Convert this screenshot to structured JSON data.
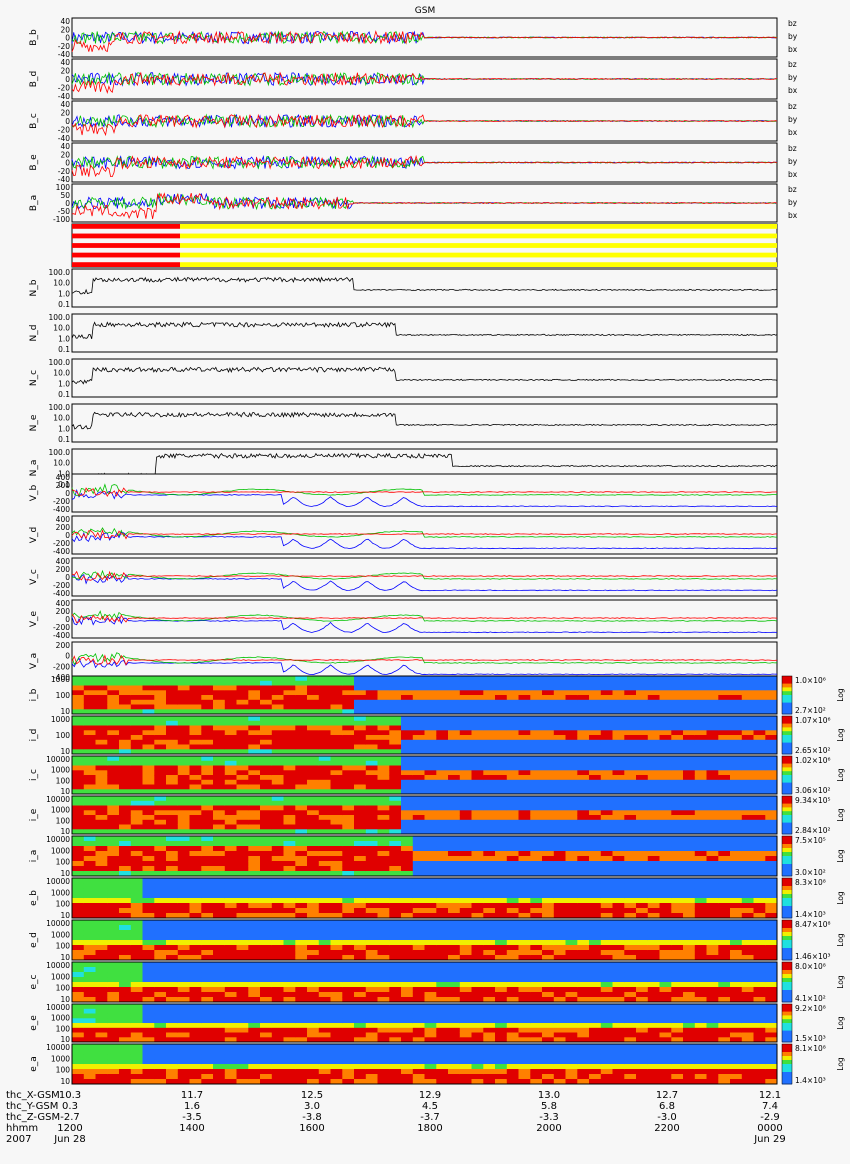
{
  "title": "GSM",
  "colors": {
    "bz": "#ff0000",
    "by": "#00c000",
    "bx": "#0000ff",
    "spin_red": "#ff0000",
    "spin_yellow": "#ffff00"
  },
  "chart_data": [
    {
      "type": "line",
      "group": "magnetic field",
      "panels": [
        {
          "ylabel": "B_b",
          "legend": [
            "bz",
            "by",
            "bx"
          ],
          "ticks": [
            "40",
            "20",
            "0",
            "-20",
            "-40"
          ]
        },
        {
          "ylabel": "B_d",
          "legend": [
            "bz",
            "by",
            "bx"
          ],
          "ticks": [
            "40",
            "20",
            "0",
            "-20",
            "-40"
          ]
        },
        {
          "ylabel": "B_c",
          "legend": [
            "bz",
            "by",
            "bx"
          ],
          "ticks": [
            "40",
            "20",
            "0",
            "-20",
            "-40"
          ]
        },
        {
          "ylabel": "B_e",
          "legend": [
            "bz",
            "by",
            "bx"
          ],
          "ticks": [
            "40",
            "20",
            "0",
            "-20",
            "-40"
          ]
        },
        {
          "ylabel": "B_a",
          "legend": [
            "bz",
            "by",
            "bx"
          ],
          "ticks": [
            "100",
            "50",
            "0",
            "-50",
            "-100"
          ]
        }
      ]
    },
    {
      "type": "line",
      "group": "density",
      "yscale": "log",
      "panels": [
        {
          "ylabel": "N_b",
          "ticks": [
            "100.0",
            "10.0",
            "1.0",
            "0.1"
          ]
        },
        {
          "ylabel": "N_d",
          "ticks": [
            "100.0",
            "10.0",
            "1.0",
            "0.1"
          ]
        },
        {
          "ylabel": "N_c",
          "ticks": [
            "100.0",
            "10.0",
            "1.0",
            "0.1"
          ]
        },
        {
          "ylabel": "N_e",
          "ticks": [
            "100.0",
            "10.0",
            "1.0",
            "0.1"
          ]
        },
        {
          "ylabel": "N_a",
          "ticks": [
            "100.0",
            "10.0",
            "1.0",
            "0.1"
          ]
        }
      ]
    },
    {
      "type": "line",
      "group": "velocity",
      "panels": [
        {
          "ylabel": "V_b",
          "ticks": [
            "400",
            "200",
            "0",
            "-200",
            "-400"
          ]
        },
        {
          "ylabel": "V_d",
          "ticks": [
            "400",
            "200",
            "0",
            "-200",
            "-400"
          ]
        },
        {
          "ylabel": "V_c",
          "ticks": [
            "400",
            "200",
            "0",
            "-200",
            "-400"
          ]
        },
        {
          "ylabel": "V_e",
          "ticks": [
            "400",
            "200",
            "0",
            "-200",
            "-400"
          ]
        },
        {
          "ylabel": "V_a",
          "ticks": [
            "200",
            "0",
            "-200",
            "-400"
          ]
        }
      ]
    },
    {
      "type": "heatmap",
      "group": "ion spectrogram",
      "colorbar_label": "Log",
      "panels": [
        {
          "ylabel": "i_b",
          "ticks": [
            "1000",
            "100",
            "10"
          ],
          "cmax": "1.0×10⁶",
          "cmin": "2.7×10²"
        },
        {
          "ylabel": "i_d",
          "ticks": [
            "1000",
            "100",
            "10"
          ],
          "cmax": "1.07×10⁶",
          "cmin": "2.65×10²"
        },
        {
          "ylabel": "i_c",
          "ticks": [
            "10000",
            "1000",
            "100",
            "10"
          ],
          "cmax": "1.02×10⁶",
          "cmin": "3.06×10²"
        },
        {
          "ylabel": "i_e",
          "ticks": [
            "10000",
            "1000",
            "100",
            "10"
          ],
          "cmax": "9.34×10⁵",
          "cmin": "2.84×10²"
        },
        {
          "ylabel": "i_a",
          "ticks": [
            "10000",
            "1000",
            "100",
            "10"
          ],
          "cmax": "7.5×10⁵",
          "cmin": "3.0×10²"
        }
      ]
    },
    {
      "type": "heatmap",
      "group": "electron spectrogram",
      "colorbar_label": "Log",
      "panels": [
        {
          "ylabel": "e_b",
          "ticks": [
            "10000",
            "1000",
            "100",
            "10"
          ],
          "cmax": "8.3×10⁸",
          "cmin": "1.4×10³"
        },
        {
          "ylabel": "e_d",
          "ticks": [
            "10000",
            "1000",
            "100",
            "10"
          ],
          "cmax": "8.47×10⁸",
          "cmin": "1.46×10³"
        },
        {
          "ylabel": "e_c",
          "ticks": [
            "10000",
            "1000",
            "100",
            "10"
          ],
          "cmax": "8.0×10⁸",
          "cmin": "4.1×10²"
        },
        {
          "ylabel": "e_e",
          "ticks": [
            "10000",
            "1000",
            "100",
            "10"
          ],
          "cmax": "9.2×10⁸",
          "cmin": "1.5×10³"
        },
        {
          "ylabel": "e_a",
          "ticks": [
            "10000",
            "1000",
            "100",
            "10"
          ],
          "cmax": "8.1×10⁸",
          "cmin": "1.4×10³"
        }
      ]
    }
  ],
  "footer": {
    "rows": [
      {
        "label": "thc_X-GSM",
        "values": [
          "10.3",
          "11.7",
          "12.5",
          "12.9",
          "13.0",
          "12.7",
          "12.1"
        ]
      },
      {
        "label": "thc_Y-GSM",
        "values": [
          "0.3",
          "1.6",
          "3.0",
          "4.5",
          "5.8",
          "6.8",
          "7.4"
        ]
      },
      {
        "label": "thc_Z-GSM",
        "values": [
          "-2.7",
          "-3.5",
          "-3.8",
          "-3.7",
          "-3.3",
          "-3.0",
          "-2.9"
        ]
      },
      {
        "label": "hhmm",
        "values": [
          "1200",
          "1400",
          "1600",
          "1800",
          "2000",
          "2200",
          "0000"
        ]
      },
      {
        "label": "2007",
        "values": [
          "Jun 28",
          "",
          "",
          "",
          "",
          "",
          "Jun 29"
        ]
      }
    ]
  }
}
